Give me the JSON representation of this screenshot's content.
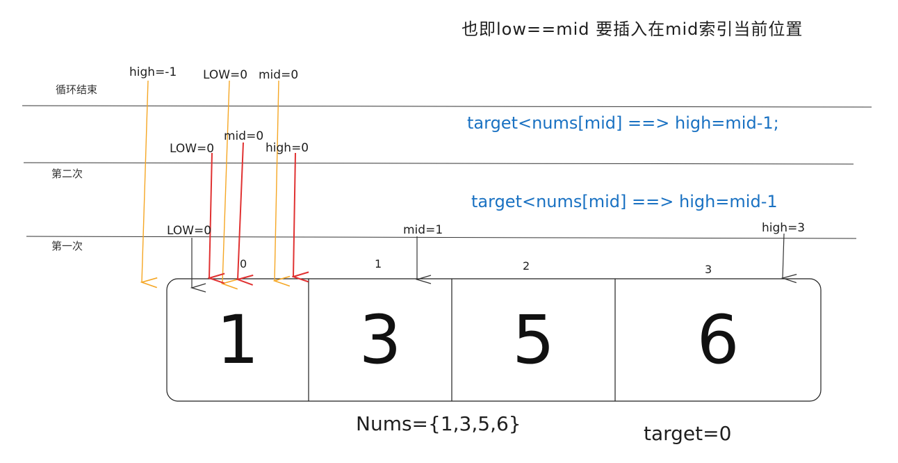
{
  "note": {
    "top": "也即low==mid 要插入在mid索引当前位置"
  },
  "rounds": {
    "end_label": "循环结束",
    "second_label": "第二次",
    "first_label": "第一次"
  },
  "pointers": {
    "end": {
      "high": "high=-1",
      "low": "LOW=0",
      "mid": "mid=0"
    },
    "second": {
      "low": "LOW=0",
      "mid": "mid=0",
      "high": "high=0"
    },
    "first": {
      "low": "LOW=0",
      "mid": "mid=1",
      "high": "high=3"
    }
  },
  "rules": {
    "line1": "target<nums[mid] ==> high=mid-1;",
    "line2": "target<nums[mid] ==> high=mid-1"
  },
  "array": {
    "indices": [
      "0",
      "1",
      "2",
      "3"
    ],
    "values": [
      "1",
      "3",
      "5",
      "6"
    ],
    "label": "Nums={1,3,5,6}",
    "target": "target=0"
  },
  "colors": {
    "blue_text": "#1971c2",
    "red_arrow": "#e03131",
    "orange_arrow": "#f5a623",
    "dark_arrow": "#333333"
  }
}
